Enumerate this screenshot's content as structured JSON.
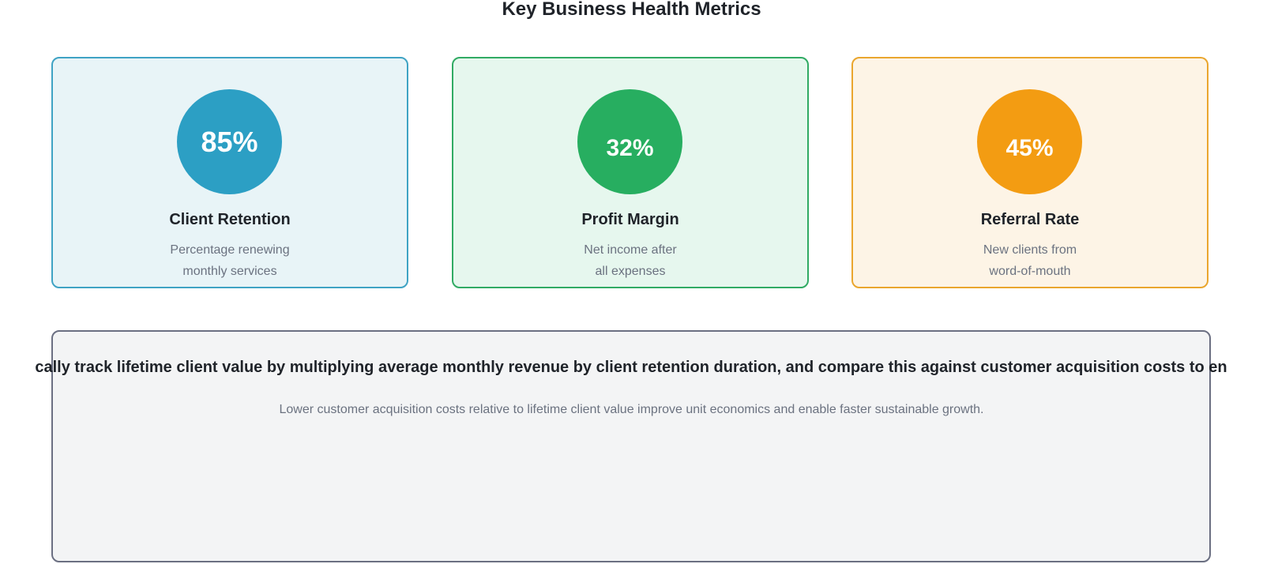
{
  "title": "Key Business Health Metrics",
  "metrics": [
    {
      "value": "85%",
      "name": "Client Retention",
      "desc_line1": "Percentage renewing",
      "desc_line2": "monthly services",
      "color": "#2c9fc4"
    },
    {
      "value": "32%",
      "name": "Profit Margin",
      "desc_line1": "Net income after",
      "desc_line2": "all expenses",
      "color": "#27ae60"
    },
    {
      "value": "45%",
      "name": "Referral Rate",
      "desc_line1": "New clients from",
      "desc_line2": "word-of-mouth",
      "color": "#f39c12"
    }
  ],
  "bottom": {
    "heading": "cally track lifetime client value by multiplying average monthly revenue by client retention duration, and compare this against customer acquisition costs to en",
    "text": "Lower customer acquisition costs relative to lifetime client value improve unit economics and enable faster sustainable growth."
  }
}
